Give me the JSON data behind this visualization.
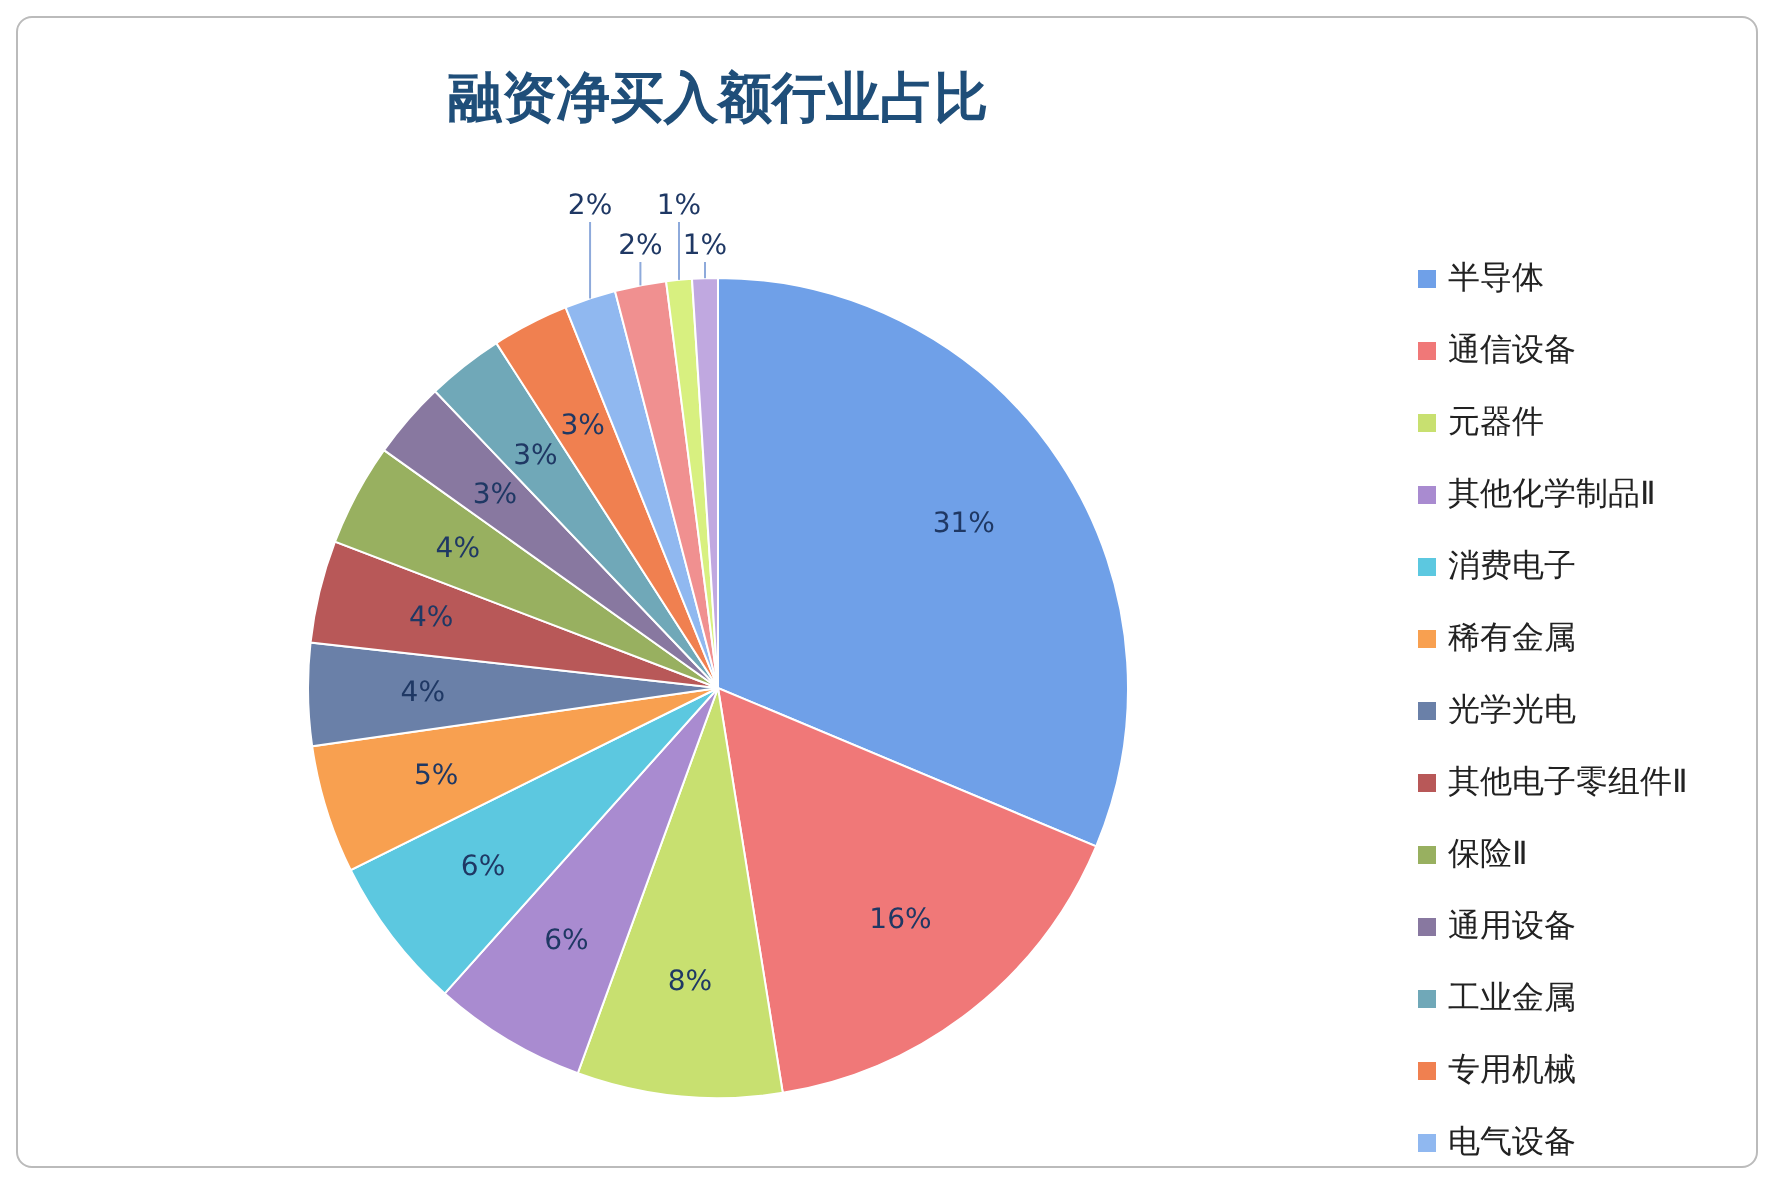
{
  "chart_data": {
    "type": "pie",
    "title": "融资净买入额行业占比",
    "categories": [
      "半导体",
      "通信设备",
      "元器件",
      "其他化学制品Ⅱ",
      "消费电子",
      "稀有金属",
      "光学光电",
      "其他电子零组件Ⅱ",
      "保险Ⅱ",
      "通用设备",
      "工业金属",
      "专用机械",
      "电气设备",
      null,
      null,
      null
    ],
    "values": [
      31,
      16,
      8,
      6,
      6,
      5,
      4,
      4,
      4,
      3,
      3,
      3,
      2,
      2,
      1,
      1
    ],
    "value_labels": [
      "31%",
      "16%",
      "8%",
      "6%",
      "6%",
      "5%",
      "4%",
      "4%",
      "4%",
      "3%",
      "3%",
      "3%",
      "2%",
      "2%",
      "1%",
      "1%"
    ],
    "colors": [
      "#6fa0e8",
      "#f07878",
      "#c8e070",
      "#a98bd0",
      "#5cc8e0",
      "#f8a050",
      "#6a80a8",
      "#b85858",
      "#98b060",
      "#8878a0",
      "#70a8b8",
      "#f08050",
      "#90b8f0",
      "#f09090",
      "#d8f080",
      "#c0a8e0"
    ],
    "legend": "right"
  }
}
